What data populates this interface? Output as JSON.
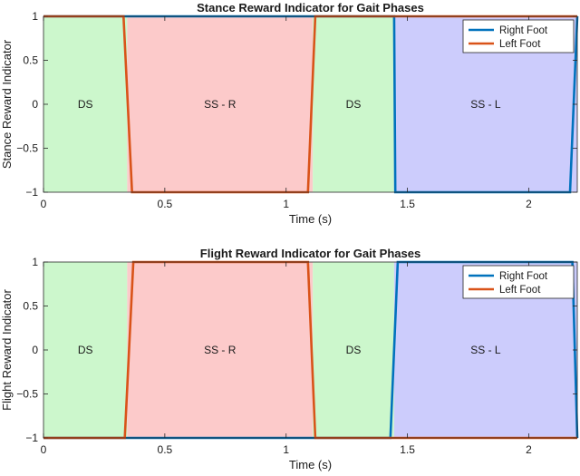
{
  "chart_data": [
    {
      "type": "line",
      "title": "Stance Reward Indicator for Gait Phases",
      "xlabel": "Time (s)",
      "ylabel": "Stance Reward Indicator",
      "xlim": [
        0,
        2.2
      ],
      "ylim": [
        -1,
        1
      ],
      "xticks": [
        0,
        0.5,
        1,
        1.5,
        2
      ],
      "xtick_labels": [
        "0",
        "0.5",
        "1",
        "1.5",
        "2"
      ],
      "yticks": [
        -1,
        -0.5,
        0,
        0.5,
        1
      ],
      "ytick_labels": [
        "−1",
        "−0.5",
        "0",
        "0.5",
        "1"
      ],
      "grid": false,
      "legend_position": "top-right",
      "phases": [
        {
          "label": "DS",
          "x0": 0.0,
          "x1": 0.345,
          "color": "#ccf7cc"
        },
        {
          "label": "SS - R",
          "x0": 0.345,
          "x1": 1.11,
          "color": "#fccaca"
        },
        {
          "label": "DS",
          "x0": 1.11,
          "x1": 1.445,
          "color": "#ccf7cc"
        },
        {
          "label": "SS - L",
          "x0": 1.445,
          "x1": 2.2,
          "color": "#ccccfc"
        }
      ],
      "series": [
        {
          "name": "Right Foot",
          "color": "#0072bd",
          "x": [
            0,
            0.345,
            1.11,
            1.445,
            1.45,
            2.17,
            2.2
          ],
          "y": [
            1,
            1,
            1,
            1,
            -1,
            -1,
            1
          ]
        },
        {
          "name": "Left Foot",
          "color": "#d95319",
          "x": [
            0,
            0.33,
            0.365,
            1.09,
            1.12,
            2.2
          ],
          "y": [
            1,
            1,
            -1,
            -1,
            1,
            1
          ]
        }
      ]
    },
    {
      "type": "line",
      "title": "Flight Reward Indicator for Gait Phases",
      "xlabel": "Time (s)",
      "ylabel": "Flight Reward Indicator",
      "xlim": [
        0,
        2.2
      ],
      "ylim": [
        -1,
        1
      ],
      "xticks": [
        0,
        0.5,
        1,
        1.5,
        2
      ],
      "xtick_labels": [
        "0",
        "0.5",
        "1",
        "1.5",
        "2"
      ],
      "yticks": [
        -1,
        -0.5,
        0,
        0.5,
        1
      ],
      "ytick_labels": [
        "−1",
        "−0.5",
        "0",
        "0.5",
        "1"
      ],
      "grid": false,
      "legend_position": "top-right",
      "phases": [
        {
          "label": "DS",
          "x0": 0.0,
          "x1": 0.345,
          "color": "#ccf7cc"
        },
        {
          "label": "SS - R",
          "x0": 0.345,
          "x1": 1.11,
          "color": "#fccaca"
        },
        {
          "label": "DS",
          "x0": 1.11,
          "x1": 1.445,
          "color": "#ccf7cc"
        },
        {
          "label": "SS - L",
          "x0": 1.445,
          "x1": 2.2,
          "color": "#ccccfc"
        }
      ],
      "series": [
        {
          "name": "Right Foot",
          "color": "#0072bd",
          "x": [
            0,
            1.43,
            1.46,
            2.18,
            2.2
          ],
          "y": [
            -1,
            -1,
            1,
            1,
            -1
          ]
        },
        {
          "name": "Left Foot",
          "color": "#d95319",
          "x": [
            0,
            0.335,
            0.37,
            1.09,
            1.12,
            2.2
          ],
          "y": [
            -1,
            -1,
            1,
            1,
            -1,
            -1
          ]
        }
      ]
    }
  ]
}
